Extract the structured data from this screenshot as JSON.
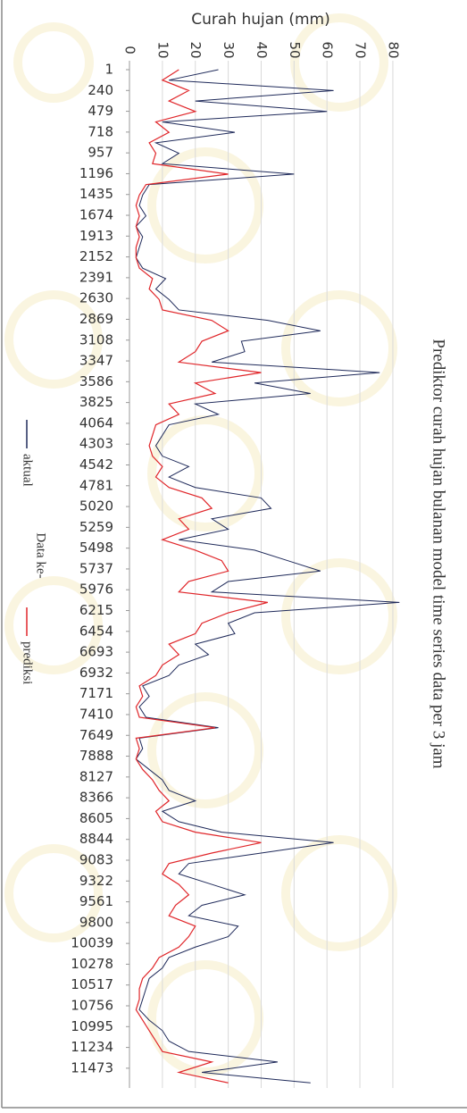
{
  "chart_data": {
    "type": "line",
    "title": "Prediktor curah hujan bulanan model time series data per 3 jam",
    "x_label": "Data ke-",
    "y_label": "Curah hujan (mm)",
    "x": [
      1,
      121,
      241,
      361,
      481,
      601,
      721,
      841,
      961,
      1081,
      1201,
      1321,
      1441,
      1561,
      1681,
      1801,
      1921,
      2041,
      2161,
      2281,
      2401,
      2521,
      2641,
      2761,
      2881,
      3001,
      3121,
      3241,
      3361,
      3481,
      3601,
      3721,
      3841,
      3961,
      4081,
      4201,
      4321,
      4441,
      4561,
      4681,
      4801,
      4921,
      5041,
      5161,
      5281,
      5401,
      5521,
      5641,
      5761,
      5881,
      6001,
      6121,
      6241,
      6361,
      6481,
      6601,
      6721,
      6841,
      6961,
      7081,
      7201,
      7321,
      7441,
      7561,
      7681,
      7801,
      7921,
      8041,
      8161,
      8281,
      8401,
      8521,
      8641,
      8761,
      8881,
      9001,
      9121,
      9241,
      9361,
      9481,
      9601,
      9721,
      9841,
      9961,
      10081,
      10201,
      10321,
      10441,
      10561,
      10681,
      10801,
      10921,
      11041,
      11161,
      11281,
      11401,
      11521,
      11641
    ],
    "series": [
      {
        "name": "aktual",
        "color": "#1f2a5a",
        "values": [
          27,
          12,
          62,
          20,
          60,
          10,
          32,
          8,
          15,
          10,
          50,
          6,
          4,
          3,
          5,
          2,
          4,
          3,
          2,
          4,
          11,
          8,
          12,
          15,
          42,
          58,
          34,
          35,
          25,
          76,
          38,
          55,
          20,
          27,
          12,
          10,
          8,
          10,
          18,
          12,
          20,
          40,
          43,
          25,
          30,
          15,
          38,
          48,
          58,
          30,
          25,
          82,
          38,
          30,
          32,
          20,
          24,
          15,
          12,
          4,
          6,
          3,
          5,
          27,
          3,
          4,
          2,
          6,
          10,
          12,
          20,
          10,
          15,
          28,
          62,
          40,
          18,
          15,
          25,
          35,
          22,
          18,
          33,
          30,
          20,
          12,
          10,
          6,
          5,
          4,
          3,
          6,
          10,
          12,
          18,
          45,
          22,
          55
        ]
      },
      {
        "name": "prediksi",
        "color": "#e0262a",
        "values": [
          15,
          10,
          18,
          12,
          20,
          8,
          12,
          6,
          8,
          7,
          30,
          5,
          3,
          2,
          3,
          2,
          3,
          2,
          2,
          3,
          7,
          6,
          9,
          10,
          25,
          30,
          22,
          20,
          15,
          40,
          20,
          26,
          12,
          15,
          8,
          7,
          6,
          7,
          10,
          8,
          12,
          22,
          25,
          15,
          18,
          10,
          20,
          28,
          30,
          18,
          15,
          42,
          30,
          22,
          20,
          12,
          15,
          10,
          8,
          3,
          4,
          2,
          3,
          26,
          2,
          3,
          2,
          4,
          7,
          9,
          12,
          8,
          10,
          20,
          40,
          25,
          12,
          10,
          15,
          18,
          14,
          12,
          20,
          18,
          15,
          9,
          7,
          4,
          3,
          3,
          2,
          4,
          6,
          8,
          10,
          25,
          15,
          30
        ]
      }
    ],
    "xlim": [
      1,
      11700
    ],
    "xticks": [
      1,
      240,
      479,
      718,
      957,
      1196,
      1435,
      1674,
      1913,
      2152,
      2391,
      2630,
      2869,
      3108,
      3347,
      3586,
      3825,
      4064,
      4303,
      4542,
      4781,
      5020,
      5259,
      5498,
      5737,
      5976,
      6215,
      6454,
      6693,
      6932,
      7171,
      7410,
      7649,
      7888,
      8127,
      8366,
      8605,
      8844,
      9083,
      9322,
      9561,
      9800,
      10039,
      10278,
      10517,
      10756,
      10995,
      11234,
      11473
    ],
    "ylim": [
      0,
      83
    ],
    "yticks": [
      0,
      10,
      20,
      30,
      40,
      50,
      60,
      70,
      80
    ],
    "grid": true,
    "legend": "left"
  }
}
